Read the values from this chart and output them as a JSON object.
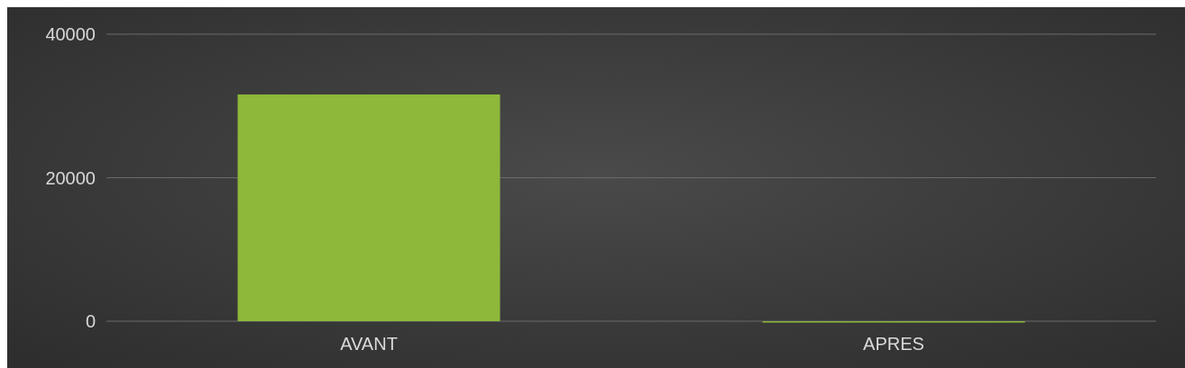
{
  "chart_data": {
    "type": "bar",
    "categories": [
      "AVANT",
      "APRES"
    ],
    "values": [
      31600,
      0
    ],
    "color": "#8db83a",
    "ylim": [
      0,
      40000
    ],
    "yticks": [
      0,
      20000,
      40000
    ],
    "grid": true
  }
}
